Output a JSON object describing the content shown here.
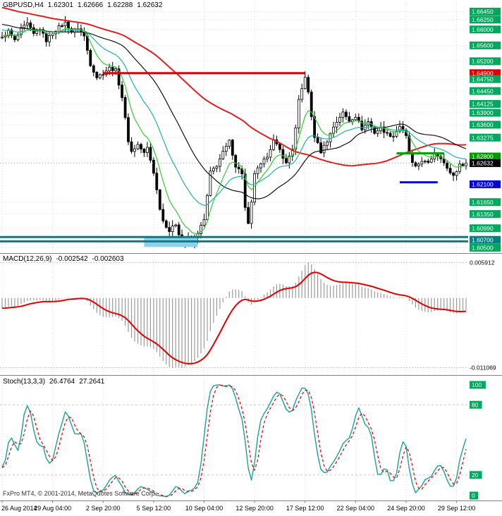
{
  "footer": {
    "copyright": "FxPro MT4, © 2001-2014, MetaQuotes Software Corp."
  },
  "chart_data": [
    {
      "type": "candlestick",
      "panel": "main",
      "title": {
        "symbol_period": "GBPUSD,H4",
        "open": "1.62301",
        "high": "1.62666",
        "low": "1.62288",
        "close": "1.62632"
      },
      "bid": 1.62632,
      "candles": 148,
      "noise": 0.0008,
      "pre": {
        "count": 80,
        "start": 1.6755
      },
      "waypoints": [
        [
          0,
          1.6578
        ],
        [
          2,
          1.6596
        ],
        [
          4,
          1.6572
        ],
        [
          6,
          1.6601
        ],
        [
          8,
          1.6614
        ],
        [
          10,
          1.6588
        ],
        [
          12,
          1.6602
        ],
        [
          14,
          1.6572
        ],
        [
          16,
          1.6592
        ],
        [
          18,
          1.6606
        ],
        [
          20,
          1.6617
        ],
        [
          22,
          1.6594
        ],
        [
          24,
          1.6604
        ],
        [
          26,
          1.6583
        ],
        [
          28,
          1.6512
        ],
        [
          30,
          1.648
        ],
        [
          32,
          1.649
        ],
        [
          34,
          1.6503
        ],
        [
          36,
          1.6497
        ],
        [
          38,
          1.643
        ],
        [
          40,
          1.632
        ],
        [
          41,
          1.6292
        ],
        [
          43,
          1.631
        ],
        [
          45,
          1.6288
        ],
        [
          46,
          1.6302
        ],
        [
          48,
          1.624
        ],
        [
          50,
          1.615
        ],
        [
          51,
          1.6118
        ],
        [
          53,
          1.6092
        ],
        [
          55,
          1.611
        ],
        [
          57,
          1.6062
        ],
        [
          59,
          1.6073
        ],
        [
          60,
          1.6058
        ],
        [
          62,
          1.6088
        ],
        [
          64,
          1.612
        ],
        [
          66,
          1.624
        ],
        [
          68,
          1.6258
        ],
        [
          70,
          1.629
        ],
        [
          72,
          1.6318
        ],
        [
          74,
          1.6256
        ],
        [
          76,
          1.6238
        ],
        [
          77,
          1.615
        ],
        [
          78,
          1.6108
        ],
        [
          79,
          1.6162
        ],
        [
          80,
          1.6238
        ],
        [
          82,
          1.6258
        ],
        [
          84,
          1.6282
        ],
        [
          86,
          1.632
        ],
        [
          88,
          1.6296
        ],
        [
          90,
          1.6262
        ],
        [
          92,
          1.63
        ],
        [
          93,
          1.635
        ],
        [
          94,
          1.642
        ],
        [
          95,
          1.645
        ],
        [
          96,
          1.6482
        ],
        [
          97,
          1.644
        ],
        [
          98,
          1.638
        ],
        [
          99,
          1.633
        ],
        [
          101,
          1.6292
        ],
        [
          103,
          1.632
        ],
        [
          105,
          1.6355
        ],
        [
          107,
          1.638
        ],
        [
          108,
          1.639
        ],
        [
          110,
          1.637
        ],
        [
          112,
          1.6382
        ],
        [
          114,
          1.635
        ],
        [
          116,
          1.6368
        ],
        [
          118,
          1.634
        ],
        [
          120,
          1.6352
        ],
        [
          122,
          1.6336
        ],
        [
          124,
          1.6332
        ],
        [
          126,
          1.6357
        ],
        [
          128,
          1.633
        ],
        [
          129,
          1.629
        ],
        [
          130,
          1.6262
        ],
        [
          131,
          1.6252
        ],
        [
          133,
          1.627
        ],
        [
          135,
          1.6262
        ],
        [
          137,
          1.6288
        ],
        [
          139,
          1.6278
        ],
        [
          141,
          1.6248
        ],
        [
          143,
          1.6232
        ],
        [
          145,
          1.6258
        ],
        [
          147,
          1.62632
        ]
      ],
      "y_axis": {
        "min": 1.60401,
        "max": 1.66619,
        "labels": [
          {
            "text": "1.66450",
            "price": 1.6645,
            "style": "grid"
          },
          {
            "text": "1.66250",
            "price": 1.6625,
            "style": "grid"
          },
          {
            "text": "1.66000",
            "price": 1.66,
            "style": "grid"
          },
          {
            "text": "1.65600",
            "price": 1.656,
            "style": "grid"
          },
          {
            "text": "1.65200",
            "price": 1.652,
            "style": "grid"
          },
          {
            "text": "1.64900",
            "price": 1.649,
            "style": "line_red"
          },
          {
            "text": "1.64750",
            "price": 1.6475,
            "style": "grid"
          },
          {
            "text": "1.64450",
            "price": 1.6445,
            "style": "grid"
          },
          {
            "text": "1.64125",
            "price": 1.64125,
            "style": "grid"
          },
          {
            "text": "1.63900",
            "price": 1.639,
            "style": "grid"
          },
          {
            "text": "1.63600",
            "price": 1.636,
            "style": "grid"
          },
          {
            "text": "1.63275",
            "price": 1.63275,
            "style": "grid"
          },
          {
            "text": "1.62800",
            "price": 1.628,
            "style": "line_green"
          },
          {
            "text": "1.62632",
            "price": 1.62632,
            "style": "bid"
          },
          {
            "text": "1.62100",
            "price": 1.621,
            "style": "line_blue"
          },
          {
            "text": "1.61650",
            "price": 1.6165,
            "style": "grid"
          },
          {
            "text": "1.61350",
            "price": 1.6135,
            "style": "grid"
          },
          {
            "text": "1.60990",
            "price": 1.6099,
            "style": "grid"
          },
          {
            "text": "1.60700",
            "price": 1.607,
            "style": "line_teal"
          },
          {
            "text": "1.60500",
            "price": 1.605,
            "style": "grid"
          }
        ]
      },
      "badge_colors": {
        "grid": "#00A85D",
        "line_red": "#DD0000",
        "line_green": "#009900",
        "line_blue": "#0000DD",
        "line_teal": "#008080",
        "bid": "#000000"
      },
      "x_ticks": {
        "indices": [
          0,
          16,
          32,
          48,
          64,
          80,
          96,
          112,
          128,
          144
        ],
        "labels": [
          "26 Aug 2014",
          "29 Aug 04:00",
          "2 Sep 20:00",
          "5 Sep 12:00",
          "10 Sep 04:00",
          "12 Sep 20:00",
          "17 Sep 12:00",
          "22 Sep 04:00",
          "24 Sep 20:00",
          "29 Sep 12:00"
        ]
      },
      "moving_averages": [
        {
          "name": "ma-slow-red",
          "method": "sma",
          "period": 72,
          "color": "#E02020",
          "width": 2
        },
        {
          "name": "ma-mid-black",
          "method": "sma",
          "period": 34,
          "color": "#111111",
          "width": 1.2
        },
        {
          "name": "ma-teal",
          "method": "ema",
          "period": 21,
          "color": "#20B2AA",
          "width": 1.2
        },
        {
          "name": "ma-fast-green",
          "method": "ema",
          "period": 8,
          "color": "#32CD32",
          "width": 1.2
        }
      ],
      "objects": [
        {
          "kind": "segment",
          "name": "resistance-red",
          "price": 1.649,
          "i1": 32,
          "i2": 96,
          "color": "#DD0000",
          "width": 3
        },
        {
          "kind": "segment",
          "name": "level-green",
          "price": 1.6288,
          "i1": 125,
          "i2": 140,
          "color": "#00A000",
          "width": 3
        },
        {
          "kind": "segment",
          "name": "level-blue",
          "price": 1.6215,
          "i1": 126,
          "i2": 138,
          "color": "#0000EE",
          "width": 3
        },
        {
          "kind": "box",
          "name": "support-zone",
          "price_top": 1.6079,
          "price_bottom": 1.6052,
          "i1": 45,
          "i2": 62,
          "color": "#8ED1EC"
        },
        {
          "kind": "hline",
          "name": "support-teal-upper",
          "price": 1.6077,
          "color": "#008080",
          "width": 3
        },
        {
          "kind": "hline",
          "name": "support-teal-lower",
          "price": 1.6066,
          "color": "#008080",
          "width": 3
        }
      ]
    },
    {
      "type": "macd",
      "panel": "indicator1",
      "title": {
        "name": "MACD(12,26,9)",
        "value": "-0.002542",
        "signal": "-0.002603"
      },
      "fast": 12,
      "slow": 26,
      "signal": 9,
      "scale_labels": {
        "max": "0.005912",
        "min": "-0.011069"
      },
      "colors": {
        "histogram": "#9A9A9A",
        "signal": "#E00000"
      }
    },
    {
      "type": "stochastic",
      "panel": "indicator2",
      "title": {
        "name": "Stoch(13,3,3)",
        "value": "26.4764",
        "signal": "27.2641"
      },
      "k_period": 13,
      "slowing": 3,
      "d_period": 3,
      "levels": [
        80,
        20
      ],
      "scale_labels": [
        {
          "text": "100",
          "value": 100
        },
        {
          "text": "80",
          "value": 80
        },
        {
          "text": "20",
          "value": 20
        },
        {
          "text": "0",
          "value": 0
        }
      ],
      "colors": {
        "main": "#17A398",
        "signal": "#E00000"
      }
    }
  ]
}
